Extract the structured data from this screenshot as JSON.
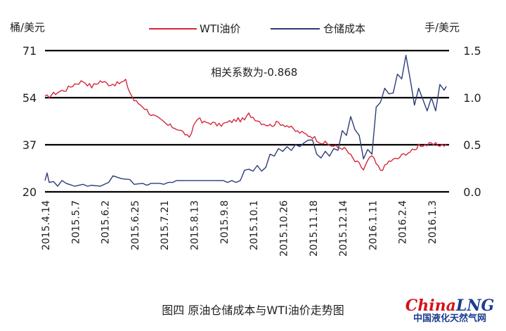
{
  "chart_data": {
    "type": "line",
    "title": "",
    "left_axis_label": "桶/美元",
    "right_axis_label": "手/美元",
    "left_ticks": [
      71,
      54,
      37,
      20
    ],
    "right_ticks": [
      "1.5",
      "1.0",
      "0.5",
      "0.0"
    ],
    "ylim_left": [
      20,
      71
    ],
    "ylim_right": [
      0,
      1.5
    ],
    "x_ticks": [
      "2015.4.14",
      "2015.5.7",
      "2015.6.2",
      "2015.6.25",
      "2015.7.21",
      "2015.8.13",
      "2015.9.8",
      "2015.10.1",
      "2015.10.26",
      "2015.11.18",
      "2015.12.14",
      "2016.1.11",
      "2016.2.4",
      "2016.1.3"
    ],
    "legend_position": "top",
    "grid": "horizontal",
    "n_points": 190,
    "series": [
      {
        "name": "WTI油价",
        "axis": "left",
        "color": "#d4283c",
        "keypoints": [
          [
            0,
            54
          ],
          [
            3,
            55
          ],
          [
            6,
            56
          ],
          [
            10,
            57
          ],
          [
            14,
            59
          ],
          [
            18,
            60
          ],
          [
            22,
            58
          ],
          [
            26,
            60
          ],
          [
            30,
            59
          ],
          [
            34,
            59
          ],
          [
            38,
            60
          ],
          [
            40,
            56
          ],
          [
            42,
            53
          ],
          [
            44,
            52
          ],
          [
            46,
            51
          ],
          [
            50,
            48
          ],
          [
            54,
            46
          ],
          [
            58,
            44
          ],
          [
            62,
            43
          ],
          [
            66,
            41
          ],
          [
            68,
            39
          ],
          [
            70,
            44
          ],
          [
            72,
            47
          ],
          [
            74,
            45
          ],
          [
            78,
            45
          ],
          [
            82,
            44
          ],
          [
            86,
            45
          ],
          [
            90,
            46
          ],
          [
            94,
            46
          ],
          [
            96,
            48
          ],
          [
            98,
            47
          ],
          [
            102,
            45
          ],
          [
            106,
            44
          ],
          [
            110,
            45
          ],
          [
            114,
            44
          ],
          [
            118,
            42
          ],
          [
            122,
            41
          ],
          [
            126,
            40
          ],
          [
            130,
            38
          ],
          [
            134,
            37
          ],
          [
            138,
            36
          ],
          [
            140,
            36
          ],
          [
            142,
            35
          ],
          [
            144,
            33
          ],
          [
            146,
            31
          ],
          [
            148,
            30
          ],
          [
            150,
            28
          ],
          [
            152,
            31
          ],
          [
            154,
            33
          ],
          [
            156,
            30
          ],
          [
            158,
            28
          ],
          [
            160,
            29
          ],
          [
            162,
            31
          ],
          [
            166,
            32
          ],
          [
            170,
            34
          ],
          [
            174,
            35
          ],
          [
            176,
            37
          ],
          [
            178,
            37
          ]
        ]
      },
      {
        "name": "仓储成本",
        "axis": "right",
        "color": "#2c3c7a",
        "keypoints": [
          [
            0,
            0.12
          ],
          [
            1,
            0.2
          ],
          [
            2,
            0.1
          ],
          [
            4,
            0.11
          ],
          [
            6,
            0.06
          ],
          [
            8,
            0.12
          ],
          [
            10,
            0.09
          ],
          [
            14,
            0.06
          ],
          [
            18,
            0.08
          ],
          [
            20,
            0.06
          ],
          [
            22,
            0.07
          ],
          [
            26,
            0.06
          ],
          [
            30,
            0.1
          ],
          [
            32,
            0.17
          ],
          [
            36,
            0.14
          ],
          [
            40,
            0.13
          ],
          [
            42,
            0.08
          ],
          [
            46,
            0.09
          ],
          [
            48,
            0.07
          ],
          [
            50,
            0.09
          ],
          [
            54,
            0.09
          ],
          [
            56,
            0.08
          ],
          [
            58,
            0.1
          ],
          [
            60,
            0.1
          ],
          [
            62,
            0.12
          ],
          [
            66,
            0.12
          ],
          [
            70,
            0.12
          ],
          [
            80,
            0.12
          ],
          [
            84,
            0.12
          ],
          [
            86,
            0.1
          ],
          [
            88,
            0.12
          ],
          [
            90,
            0.1
          ],
          [
            92,
            0.12
          ],
          [
            94,
            0.23
          ],
          [
            96,
            0.24
          ],
          [
            98,
            0.22
          ],
          [
            100,
            0.28
          ],
          [
            102,
            0.22
          ],
          [
            104,
            0.26
          ],
          [
            106,
            0.4
          ],
          [
            108,
            0.38
          ],
          [
            110,
            0.46
          ],
          [
            112,
            0.43
          ],
          [
            114,
            0.48
          ],
          [
            116,
            0.44
          ],
          [
            118,
            0.5
          ],
          [
            120,
            0.48
          ],
          [
            122,
            0.52
          ],
          [
            124,
            0.55
          ],
          [
            126,
            0.55
          ],
          [
            128,
            0.4
          ],
          [
            130,
            0.36
          ],
          [
            132,
            0.43
          ],
          [
            134,
            0.38
          ],
          [
            136,
            0.46
          ],
          [
            138,
            0.44
          ],
          [
            140,
            0.65
          ],
          [
            142,
            0.6
          ],
          [
            144,
            0.8
          ],
          [
            146,
            0.66
          ],
          [
            148,
            0.6
          ],
          [
            150,
            0.35
          ],
          [
            152,
            0.45
          ],
          [
            154,
            0.4
          ],
          [
            156,
            0.9
          ],
          [
            158,
            0.95
          ],
          [
            160,
            1.1
          ],
          [
            162,
            1.04
          ],
          [
            164,
            1.05
          ],
          [
            166,
            1.25
          ],
          [
            168,
            1.2
          ],
          [
            170,
            1.45
          ],
          [
            172,
            1.2
          ],
          [
            174,
            0.92
          ],
          [
            176,
            1.1
          ],
          [
            178,
            0.98
          ],
          [
            180,
            0.86
          ],
          [
            182,
            1.0
          ],
          [
            184,
            0.86
          ],
          [
            186,
            1.14
          ],
          [
            188,
            1.08
          ],
          [
            189,
            1.12
          ]
        ]
      }
    ],
    "annotation": "相关系数为-0.868"
  },
  "caption": "图四  原油仓储成本与WTI油价走势图",
  "logo": {
    "brand_red": "China",
    "brand_blue": "LNG",
    "subtitle": "中国液化天然气网"
  }
}
